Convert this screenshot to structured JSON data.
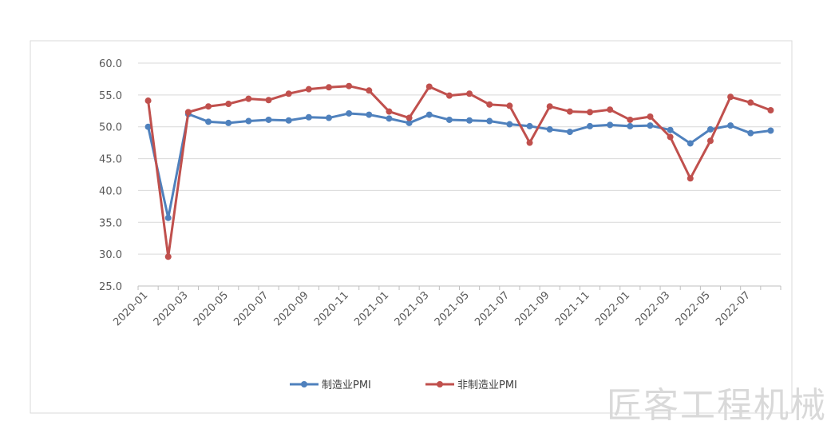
{
  "chart_data": {
    "type": "line",
    "title": "",
    "xlabel": "",
    "ylabel": "",
    "ylim": [
      25.0,
      60.0
    ],
    "yticks": [
      "25.0",
      "30.0",
      "35.0",
      "40.0",
      "45.0",
      "50.0",
      "55.0",
      "60.0"
    ],
    "grid": true,
    "legend_position": "bottom-center",
    "x": [
      "2020-01",
      "2020-02",
      "2020-03",
      "2020-04",
      "2020-05",
      "2020-06",
      "2020-07",
      "2020-08",
      "2020-09",
      "2020-10",
      "2020-11",
      "2020-12",
      "2021-01",
      "2021-02",
      "2021-03",
      "2021-04",
      "2021-05",
      "2021-06",
      "2021-07",
      "2021-08",
      "2021-09",
      "2021-10",
      "2021-11",
      "2021-12",
      "2022-01",
      "2022-02",
      "2022-03",
      "2022-04",
      "2022-05",
      "2022-06",
      "2022-07",
      "2022-08"
    ],
    "xtick_labels": [
      "2020-01",
      "2020-03",
      "2020-05",
      "2020-07",
      "2020-09",
      "2020-11",
      "2021-01",
      "2021-03",
      "2021-05",
      "2021-07",
      "2021-09",
      "2021-11",
      "2022-01",
      "2022-03",
      "2022-05",
      "2022-07"
    ],
    "series": [
      {
        "name": "制造业PMI",
        "color": "#4f81bd",
        "values": [
          50.0,
          35.7,
          52.0,
          50.8,
          50.6,
          50.9,
          51.1,
          51.0,
          51.5,
          51.4,
          52.1,
          51.9,
          51.3,
          50.6,
          51.9,
          51.1,
          51.0,
          50.9,
          50.4,
          50.1,
          49.6,
          49.2,
          50.1,
          50.3,
          50.1,
          50.2,
          49.5,
          47.4,
          49.6,
          50.2,
          49.0,
          49.4
        ]
      },
      {
        "name": "非制造业PMI",
        "color": "#c0504d",
        "values": [
          54.1,
          29.6,
          52.3,
          53.2,
          53.6,
          54.4,
          54.2,
          55.2,
          55.9,
          56.2,
          56.4,
          55.7,
          52.4,
          51.4,
          56.3,
          54.9,
          55.2,
          53.5,
          53.3,
          47.5,
          53.2,
          52.4,
          52.3,
          52.7,
          51.1,
          51.6,
          48.4,
          41.9,
          47.8,
          54.7,
          53.8,
          52.6
        ]
      }
    ]
  },
  "watermark": {
    "text": "匠客工程机械"
  }
}
